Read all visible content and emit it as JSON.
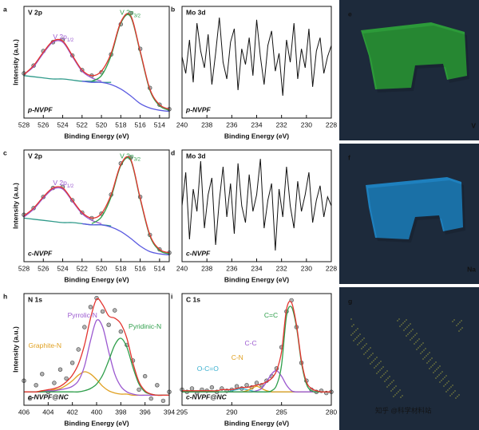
{
  "chart_data": [
    {
      "type": "line",
      "panel": "a",
      "title": "V 2p",
      "sample": "p-NVPF",
      "xlabel": "Binding Energy (eV)",
      "ylabel": "Intensity (a.u.)",
      "x": [
        528,
        527,
        526,
        525,
        524,
        523,
        522,
        521,
        520,
        519,
        518,
        517,
        516,
        515,
        514,
        513
      ],
      "xlim": [
        528,
        513
      ],
      "xticks": [
        528,
        526,
        524,
        522,
        520,
        518,
        516,
        514
      ],
      "ylim": [
        0,
        100
      ],
      "smooth": true,
      "series": [
        {
          "style": "markers",
          "color": "#b4b4b4",
          "values": [
            40,
            47,
            60,
            68,
            70,
            56,
            43,
            38,
            41,
            57,
            84,
            94,
            62,
            27,
            12,
            8
          ]
        },
        {
          "color": "#2f9a8a",
          "values": [
            38,
            37,
            36,
            35,
            35,
            34,
            33,
            33,
            32,
            32,
            null,
            null,
            null,
            null,
            null,
            null
          ]
        },
        {
          "color": "#5a5ae0",
          "values": [
            null,
            null,
            null,
            null,
            null,
            null,
            33,
            32,
            32,
            30,
            26,
            20,
            13,
            9,
            7,
            6
          ]
        },
        {
          "color": "#9b59d0",
          "values": [
            39,
            46,
            58,
            68,
            68,
            55,
            42,
            36,
            33,
            null,
            null,
            null,
            null,
            null,
            null,
            null
          ]
        },
        {
          "color": "#2e9e4a",
          "values": [
            null,
            null,
            null,
            null,
            null,
            null,
            null,
            33,
            38,
            56,
            85,
            91,
            59,
            25,
            11,
            7
          ]
        },
        {
          "color": "#e3342f",
          "values": [
            39,
            47,
            59,
            69,
            69,
            56,
            43,
            38,
            42,
            58,
            86,
            92,
            60,
            26,
            12,
            8
          ]
        }
      ],
      "annotations": [
        {
          "text": "V 2p",
          "sub": "1/2",
          "color": "#9b59d0"
        },
        {
          "text": "V 2p",
          "sub": "3/2",
          "color": "#2e9e4a"
        }
      ]
    },
    {
      "type": "line",
      "panel": "b",
      "title": "Mo 3d",
      "sample": "p-NVPF",
      "xlabel": "Binding Energy (eV)",
      "x": [
        240,
        239.7,
        239.4,
        239.1,
        238.8,
        238.5,
        238.2,
        237.9,
        237.6,
        237.3,
        237,
        236.7,
        236.4,
        236.1,
        235.8,
        235.5,
        235.2,
        234.9,
        234.6,
        234.3,
        234,
        233.7,
        233.4,
        233.1,
        232.8,
        232.5,
        232.2,
        231.9,
        231.6,
        231.3,
        231,
        230.7,
        230.4,
        230.1,
        229.8,
        229.5,
        229.2,
        228.9,
        228.6,
        228.3,
        228
      ],
      "xlim": [
        240,
        228
      ],
      "xticks": [
        240,
        238,
        236,
        234,
        232,
        230,
        228
      ],
      "ylim": [
        0,
        100
      ],
      "smooth": false,
      "series": [
        {
          "color": "#111111",
          "values": [
            55,
            40,
            70,
            32,
            85,
            60,
            45,
            75,
            30,
            58,
            90,
            50,
            35,
            68,
            80,
            25,
            62,
            48,
            72,
            38,
            88,
            55,
            30,
            65,
            78,
            42,
            58,
            20,
            70,
            50,
            85,
            35,
            62,
            45,
            80,
            28,
            60,
            72,
            40,
            55,
            65
          ]
        }
      ]
    },
    {
      "type": "line",
      "panel": "c",
      "title": "V 2p",
      "sample": "c-NVPF",
      "xlabel": "Binding Energy (eV)",
      "ylabel": "Intensity (a.u.)",
      "x": [
        528,
        527,
        526,
        525,
        524,
        523,
        522,
        521,
        520,
        519,
        518,
        517,
        516,
        515,
        514,
        513
      ],
      "xlim": [
        528,
        513
      ],
      "xticks": [
        528,
        526,
        524,
        522,
        520,
        518,
        516,
        514
      ],
      "ylim": [
        0,
        100
      ],
      "smooth": true,
      "series": [
        {
          "style": "markers",
          "color": "#b4b4b4",
          "values": [
            42,
            48,
            58,
            66,
            67,
            55,
            44,
            39,
            43,
            60,
            88,
            93,
            58,
            24,
            11,
            8
          ]
        },
        {
          "color": "#2f9a8a",
          "values": [
            39,
            38,
            37,
            36,
            35,
            35,
            34,
            33,
            33,
            32,
            null,
            null,
            null,
            null,
            null,
            null
          ]
        },
        {
          "color": "#5a5ae0",
          "values": [
            null,
            null,
            null,
            null,
            null,
            null,
            34,
            33,
            33,
            31,
            27,
            21,
            14,
            9,
            7,
            6
          ]
        },
        {
          "color": "#9b59d0",
          "values": [
            40,
            47,
            57,
            65,
            65,
            54,
            43,
            37,
            34,
            null,
            null,
            null,
            null,
            null,
            null,
            null
          ]
        },
        {
          "color": "#2e9e4a",
          "values": [
            null,
            null,
            null,
            null,
            null,
            null,
            null,
            34,
            40,
            58,
            86,
            91,
            56,
            23,
            10,
            7
          ]
        },
        {
          "color": "#e3342f",
          "values": [
            41,
            48,
            58,
            66,
            66,
            55,
            44,
            39,
            43,
            60,
            87,
            92,
            57,
            24,
            11,
            8
          ]
        }
      ],
      "annotations": [
        {
          "text": "V 2p",
          "sub": "1/2",
          "color": "#9b59d0"
        },
        {
          "text": "V 2p",
          "sub": "3/2",
          "color": "#2e9e4a"
        }
      ]
    },
    {
      "type": "line",
      "panel": "d",
      "title": "Mo 3d",
      "sample": "c-NVPF",
      "xlabel": "Binding Energy (eV)",
      "x": [
        240,
        239.7,
        239.4,
        239.1,
        238.8,
        238.5,
        238.2,
        237.9,
        237.6,
        237.3,
        237,
        236.7,
        236.4,
        236.1,
        235.8,
        235.5,
        235.2,
        234.9,
        234.6,
        234.3,
        234,
        233.7,
        233.4,
        233.1,
        232.8,
        232.5,
        232.2,
        231.9,
        231.6,
        231.3,
        231,
        230.7,
        230.4,
        230.1,
        229.8,
        229.5,
        229.2,
        228.9,
        228.6,
        228.3,
        228
      ],
      "xlim": [
        240,
        228
      ],
      "xticks": [
        240,
        238,
        236,
        234,
        232,
        230,
        228
      ],
      "ylim": [
        0,
        100
      ],
      "smooth": false,
      "series": [
        {
          "color": "#111111",
          "values": [
            50,
            80,
            20,
            65,
            45,
            90,
            30,
            60,
            75,
            15,
            55,
            85,
            40,
            70,
            25,
            88,
            50,
            35,
            78,
            45,
            60,
            92,
            30,
            55,
            70,
            10,
            65,
            40,
            85,
            50,
            30,
            72,
            45,
            60,
            80,
            35,
            55,
            68,
            40,
            58,
            50
          ]
        }
      ]
    },
    {
      "type": "line",
      "panel": "h",
      "title": "N 1s",
      "sample": "c-NVPF@NC",
      "xlabel": "Binding Energy (eV)",
      "ylabel": "Intensity (a.u.)",
      "x": [
        406,
        405.5,
        405,
        404.5,
        404,
        403.5,
        403,
        402.5,
        402,
        401.5,
        401,
        400.5,
        400,
        399.5,
        399,
        398.5,
        398,
        397.5,
        397,
        396.5,
        396,
        395.5,
        395,
        394.5,
        394
      ],
      "xlim": [
        406,
        394
      ],
      "xticks": [
        406,
        404,
        402,
        400,
        398,
        396,
        394
      ],
      "ylim": [
        0,
        100
      ],
      "smooth": true,
      "series": [
        {
          "style": "markers",
          "color": "#b4b4b4",
          "values": [
            22,
            6,
            18,
            28,
            12,
            20,
            32,
            24,
            38,
            50,
            70,
            88,
            96,
            84,
            72,
            85,
            66,
            54,
            40,
            14,
            26,
            6,
            18,
            4,
            12
          ]
        },
        {
          "color": "#e0a020",
          "values": [
            12,
            12,
            12,
            13,
            13,
            14,
            15,
            18,
            22,
            27,
            30,
            28,
            23,
            17,
            13,
            11,
            10,
            10,
            9,
            9,
            9,
            9,
            9,
            9,
            9
          ]
        },
        {
          "color": "#9b59d0",
          "values": [
            12,
            12,
            12,
            12,
            13,
            13,
            14,
            15,
            17,
            22,
            35,
            58,
            76,
            70,
            48,
            28,
            17,
            12,
            10,
            9,
            9,
            9,
            9,
            9,
            9
          ]
        },
        {
          "color": "#2e9e4a",
          "values": [
            12,
            12,
            12,
            12,
            12,
            12,
            12,
            12,
            12,
            12,
            13,
            15,
            19,
            27,
            40,
            54,
            60,
            52,
            34,
            19,
            12,
            10,
            9,
            9,
            9
          ]
        },
        {
          "color": "#e3342f",
          "values": [
            12,
            12,
            12,
            13,
            14,
            15,
            17,
            21,
            27,
            37,
            54,
            78,
            95,
            90,
            80,
            78,
            73,
            60,
            38,
            21,
            13,
            10,
            9,
            9,
            9
          ]
        }
      ],
      "annotations": [
        {
          "text": "Pyrrolic-N",
          "color": "#9b59d0"
        },
        {
          "text": "Pyridinic-N",
          "color": "#2e9e4a"
        },
        {
          "text": "Graphite-N",
          "color": "#e0a020"
        }
      ]
    },
    {
      "type": "line",
      "panel": "i",
      "title": "C 1s",
      "sample": "c-NVPF@NC",
      "xlabel": "Binding Energy (eV)",
      "x": [
        295,
        294.5,
        294,
        293.5,
        293,
        292.5,
        292,
        291.5,
        291,
        290.5,
        290,
        289.5,
        289,
        288.5,
        288,
        287.5,
        287,
        286.5,
        286,
        285.5,
        285,
        284.5,
        284,
        283.5,
        283,
        282.5,
        282,
        281.5,
        281,
        280.5,
        280
      ],
      "xlim": [
        295,
        280
      ],
      "xticks": [
        295,
        290,
        285,
        280
      ],
      "ylim": [
        0,
        100
      ],
      "smooth": true,
      "series": [
        {
          "style": "markers",
          "color": "#b4b4b4",
          "values": [
            14,
            12,
            15,
            11,
            14,
            13,
            16,
            12,
            15,
            13,
            14,
            17,
            15,
            18,
            16,
            20,
            18,
            22,
            26,
            33,
            52,
            84,
            94,
            70,
            38,
            22,
            14,
            12,
            13,
            11,
            12
          ]
        },
        {
          "color": "#3ab0d0",
          "values": [
            12,
            12,
            12,
            12,
            12,
            12,
            12,
            12,
            12,
            12,
            13,
            14,
            15,
            14,
            13,
            12,
            12,
            12,
            12,
            12,
            12,
            12,
            12,
            12,
            12,
            12,
            12,
            12,
            12,
            12,
            12
          ]
        },
        {
          "color": "#e0a020",
          "values": [
            12,
            12,
            12,
            12,
            12,
            12,
            12,
            12,
            12,
            12,
            12,
            12,
            12,
            13,
            15,
            17,
            15,
            13,
            12,
            12,
            12,
            12,
            12,
            12,
            12,
            12,
            12,
            12,
            12,
            12,
            12
          ]
        },
        {
          "color": "#9b59d0",
          "values": [
            12,
            12,
            12,
            12,
            12,
            12,
            12,
            12,
            12,
            12,
            12,
            12,
            12,
            12,
            12,
            13,
            15,
            21,
            28,
            31,
            26,
            18,
            13,
            12,
            12,
            12,
            12,
            12,
            12,
            12,
            12
          ]
        },
        {
          "color": "#2e9e4a",
          "values": [
            12,
            12,
            12,
            12,
            12,
            12,
            12,
            12,
            12,
            12,
            12,
            12,
            12,
            12,
            12,
            12,
            12,
            12,
            13,
            18,
            36,
            80,
            88,
            70,
            38,
            19,
            13,
            12,
            12,
            12,
            12
          ]
        },
        {
          "color": "#e3342f",
          "values": [
            13,
            13,
            13,
            13,
            13,
            13,
            13,
            13,
            14,
            14,
            14,
            15,
            16,
            16,
            17,
            18,
            19,
            21,
            24,
            31,
            48,
            86,
            92,
            72,
            40,
            21,
            15,
            13,
            12,
            12,
            12
          ]
        }
      ],
      "annotations": [
        {
          "text": "C=C",
          "color": "#2e9e4a"
        },
        {
          "text": "C-C",
          "color": "#9b59d0"
        },
        {
          "text": "C-N",
          "color": "#e0a020"
        },
        {
          "text": "O-C=O",
          "color": "#3ab0d0"
        }
      ]
    }
  ],
  "images": [
    {
      "panel": "e",
      "element": "V",
      "color": "#2fae3a"
    },
    {
      "panel": "f",
      "element": "Na",
      "color": "#1f8fd6"
    },
    {
      "panel": "g",
      "color": "#c8c840"
    }
  ],
  "watermark": "知乎 @科学材料站"
}
